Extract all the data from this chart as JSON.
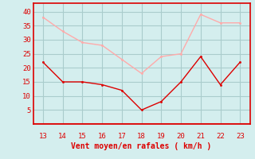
{
  "hours": [
    13,
    14,
    15,
    16,
    17,
    18,
    19,
    20,
    21,
    22,
    23
  ],
  "vent_moyen": [
    22,
    15,
    15,
    14,
    12,
    5,
    8,
    15,
    24,
    14,
    22
  ],
  "rafales": [
    38,
    33,
    29,
    28,
    23,
    18,
    24,
    25,
    39,
    36,
    36
  ],
  "color_moyen": "#dd0000",
  "color_rafales": "#ffaaaa",
  "background_color": "#d4eeee",
  "grid_color": "#aacccc",
  "xlabel": "Vent moyen/en rafales ( km/h )",
  "xlabel_color": "#dd0000",
  "tick_color": "#dd0000",
  "ylim": [
    0,
    43
  ],
  "yticks": [
    5,
    10,
    15,
    20,
    25,
    30,
    35,
    40
  ],
  "xlim": [
    12.5,
    23.5
  ]
}
